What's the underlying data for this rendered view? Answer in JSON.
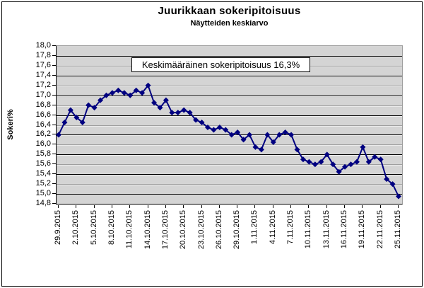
{
  "chart_data": {
    "type": "line",
    "title": "Juurikkaan sokeripitoisuus",
    "subtitle": "Näytteiden keskiarvo",
    "ylabel": "Sokeri%",
    "xlabel": "",
    "annotation": "Keskimääräinen sokeripitoisuus 16,3%",
    "ylim": [
      14.8,
      18.0
    ],
    "y_tick_step": 0.2,
    "y_tick_decimal_separator": ",",
    "grid": true,
    "legend_position": "none",
    "colors": {
      "series": "#000080",
      "plot_background": "#d4d4d4",
      "gridline_dark": "#000000",
      "gridline_light": "#9e9e9e",
      "gridline_emboss": "#eaeaea"
    },
    "x": [
      "29.9.2015",
      "30.9.2015",
      "1.10.2015",
      "2.10.2015",
      "3.10.2015",
      "4.10.2015",
      "5.10.2015",
      "6.10.2015",
      "7.10.2015",
      "8.10.2015",
      "9.10.2015",
      "10.10.2015",
      "11.10.2015",
      "12.10.2015",
      "13.10.2015",
      "14.10.2015",
      "15.10.2015",
      "16.10.2015",
      "17.10.2015",
      "18.10.2015",
      "19.10.2015",
      "20.10.2015",
      "21.10.2015",
      "22.10.2015",
      "23.10.2015",
      "24.10.2015",
      "25.10.2015",
      "26.10.2015",
      "27.10.2015",
      "28.10.2015",
      "29.10.2015",
      "30.10.2015",
      "31.10.2015",
      "1.11.2015",
      "2.11.2015",
      "3.11.2015",
      "4.11.2015",
      "5.11.2015",
      "6.11.2015",
      "7.11.2015",
      "8.11.2015",
      "9.11.2015",
      "10.11.2015",
      "11.11.2015",
      "12.11.2015",
      "13.11.2015",
      "14.11.2015",
      "15.11.2015",
      "16.11.2015",
      "17.11.2015",
      "18.11.2015",
      "19.11.2015",
      "20.11.2015",
      "21.11.2015",
      "22.11.2015",
      "23.11.2015",
      "24.11.2015",
      "25.11.2015"
    ],
    "x_tick_every": 3,
    "x_tick_labels": [
      "29.9.2015",
      "2.10.2015",
      "5.10.2015",
      "8.10.2015",
      "11.10.2015",
      "14.10.2015",
      "17.10.2015",
      "20.10.2015",
      "23.10.2015",
      "26.10.2015",
      "29.10.2015",
      "1.11.2015",
      "4.11.2015",
      "7.11.2015",
      "10.11.2015",
      "13.11.2015",
      "16.11.2015",
      "19.11.2015",
      "22.11.2015",
      "25.11.2015"
    ],
    "series": [
      {
        "name": "Näytteiden keskiarvo",
        "marker": "diamond",
        "values": [
          16.2,
          16.45,
          16.7,
          16.55,
          16.45,
          16.8,
          16.75,
          16.9,
          17.0,
          17.05,
          17.1,
          17.05,
          17.0,
          17.1,
          17.05,
          17.2,
          16.85,
          16.75,
          16.9,
          16.65,
          16.65,
          16.7,
          16.65,
          16.5,
          16.45,
          16.35,
          16.3,
          16.35,
          16.3,
          16.2,
          16.25,
          16.1,
          16.2,
          15.95,
          15.9,
          16.2,
          16.05,
          16.2,
          16.25,
          16.2,
          15.9,
          15.7,
          15.65,
          15.6,
          15.65,
          15.8,
          15.6,
          15.45,
          15.55,
          15.6,
          15.65,
          15.95,
          15.65,
          15.75,
          15.7,
          15.3,
          15.2,
          14.95
        ]
      }
    ]
  }
}
